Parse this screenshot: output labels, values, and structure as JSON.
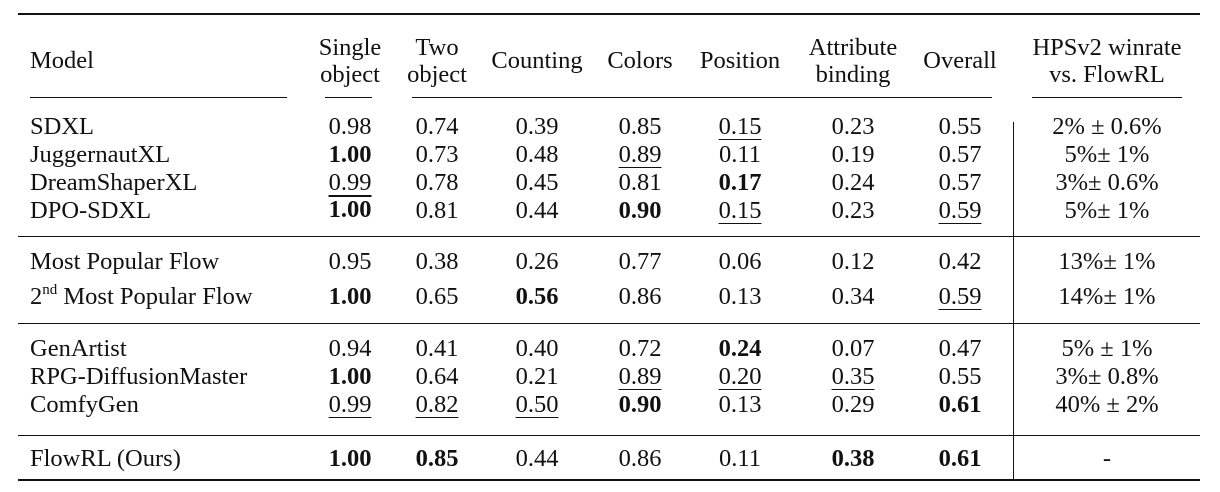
{
  "table": {
    "header": {
      "model": "Model",
      "single_object": [
        "Single",
        "object"
      ],
      "two_object": [
        "Two",
        "object"
      ],
      "counting": "Counting",
      "colors": "Colors",
      "position": "Position",
      "attribute_binding": [
        "Attribute",
        "binding"
      ],
      "overall": "Overall",
      "hps": [
        "HPSv2 winrate",
        "vs. FlowRL"
      ]
    },
    "groups": [
      {
        "rows": [
          {
            "model": "SDXL",
            "cells": [
              {
                "v": "0.98"
              },
              {
                "v": "0.74"
              },
              {
                "v": "0.39"
              },
              {
                "v": "0.85"
              },
              {
                "v": "0.15",
                "underline": true
              },
              {
                "v": "0.23"
              },
              {
                "v": "0.55"
              }
            ],
            "hps": "2% ± 0.6%"
          },
          {
            "model": "JuggernautXL",
            "cells": [
              {
                "v": "1.00",
                "bold": true
              },
              {
                "v": "0.73"
              },
              {
                "v": "0.48"
              },
              {
                "v": "0.89",
                "underline": true
              },
              {
                "v": "0.11"
              },
              {
                "v": "0.19"
              },
              {
                "v": "0.57"
              }
            ],
            "hps": "5%± 1%"
          },
          {
            "model": "DreamShaperXL",
            "cells": [
              {
                "v": "0.99",
                "underline": true
              },
              {
                "v": "0.78"
              },
              {
                "v": "0.45"
              },
              {
                "v": "0.81"
              },
              {
                "v": "0.17",
                "bold": true
              },
              {
                "v": "0.24"
              },
              {
                "v": "0.57"
              }
            ],
            "hps": "3%± 0.6%"
          },
          {
            "model": "DPO-SDXL",
            "cells": [
              {
                "v": "1.00",
                "bold": true
              },
              {
                "v": "0.81"
              },
              {
                "v": "0.44"
              },
              {
                "v": "0.90",
                "bold": true
              },
              {
                "v": "0.15",
                "underline": true
              },
              {
                "v": "0.23"
              },
              {
                "v": "0.59",
                "underline": true
              }
            ],
            "hps": "5%± 1%"
          }
        ]
      },
      {
        "rows": [
          {
            "model": "Most Popular Flow",
            "cells": [
              {
                "v": "0.95"
              },
              {
                "v": "0.38"
              },
              {
                "v": "0.26"
              },
              {
                "v": "0.77"
              },
              {
                "v": "0.06"
              },
              {
                "v": "0.12"
              },
              {
                "v": "0.42"
              }
            ],
            "hps": "13%± 1%"
          },
          {
            "model_prefix": "2",
            "model_sup": "nd",
            "model": "Most Popular Flow",
            "cells": [
              {
                "v": "1.00",
                "bold": true
              },
              {
                "v": "0.65"
              },
              {
                "v": "0.56",
                "bold": true
              },
              {
                "v": "0.86"
              },
              {
                "v": "0.13"
              },
              {
                "v": "0.34"
              },
              {
                "v": "0.59",
                "underline": true
              }
            ],
            "hps": "14%± 1%"
          }
        ]
      },
      {
        "rows": [
          {
            "model": "GenArtist",
            "cells": [
              {
                "v": "0.94"
              },
              {
                "v": "0.41"
              },
              {
                "v": "0.40"
              },
              {
                "v": "0.72"
              },
              {
                "v": "0.24",
                "bold": true
              },
              {
                "v": "0.07"
              },
              {
                "v": "0.47"
              }
            ],
            "hps": "5% ± 1%"
          },
          {
            "model": "RPG-DiffusionMaster",
            "cells": [
              {
                "v": "1.00",
                "bold": true
              },
              {
                "v": "0.64"
              },
              {
                "v": "0.21"
              },
              {
                "v": "0.89",
                "underline": true
              },
              {
                "v": "0.20",
                "underline": true
              },
              {
                "v": "0.35",
                "underline": true
              },
              {
                "v": "0.55"
              }
            ],
            "hps": "3%± 0.8%"
          },
          {
            "model": "ComfyGen",
            "cells": [
              {
                "v": "0.99",
                "underline": true
              },
              {
                "v": "0.82",
                "underline": true
              },
              {
                "v": "0.50",
                "underline": true
              },
              {
                "v": "0.90",
                "bold": true
              },
              {
                "v": "0.13"
              },
              {
                "v": "0.29"
              },
              {
                "v": "0.61",
                "bold": true
              }
            ],
            "hps": "40% ± 2%"
          }
        ]
      },
      {
        "rows": [
          {
            "model": "FlowRL (Ours)",
            "cells": [
              {
                "v": "1.00",
                "bold": true
              },
              {
                "v": "0.85",
                "bold": true
              },
              {
                "v": "0.44"
              },
              {
                "v": "0.86"
              },
              {
                "v": "0.11"
              },
              {
                "v": "0.38",
                "bold": true
              },
              {
                "v": "0.61",
                "bold": true
              }
            ],
            "hps": "-"
          }
        ]
      }
    ]
  }
}
